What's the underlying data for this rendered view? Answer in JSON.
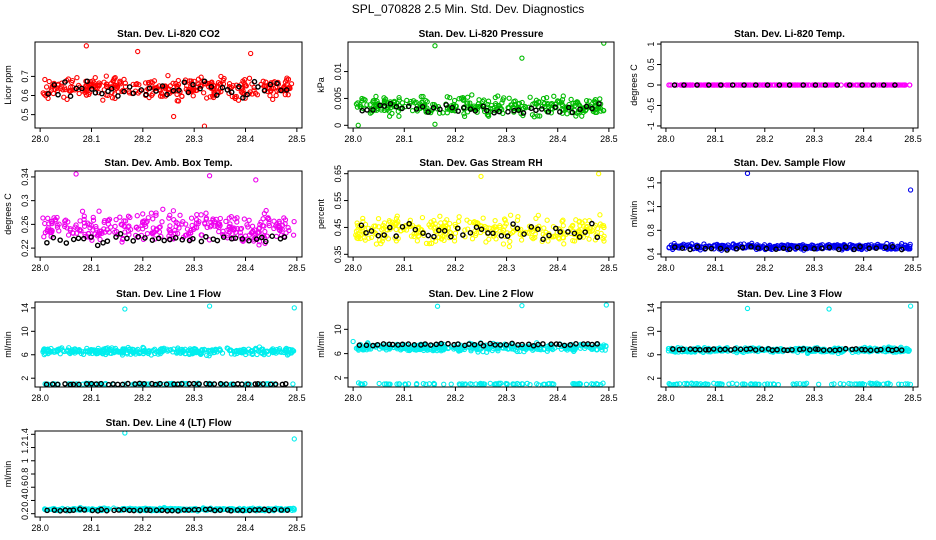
{
  "page_title": "SPL_070828  2.5 Min. Std. Dev. Diagnostics",
  "chart_data": [
    {
      "type": "scatter",
      "id": "co2",
      "title": "Stan. Dev. Li-820 CO2",
      "ylabel": "Licor ppm",
      "color": "#ff0000",
      "xlim": [
        27.99,
        28.51
      ],
      "ylim": [
        0.43,
        0.88
      ],
      "xticks": [
        28.0,
        28.1,
        28.2,
        28.3,
        28.4,
        28.5
      ],
      "yticks": [
        0.5,
        0.6,
        0.7
      ],
      "bands": [
        {
          "y": 0.64,
          "spread": 0.08,
          "n": 320
        }
      ],
      "outliers": [
        {
          "x": 28.09,
          "y": 0.86
        },
        {
          "x": 28.26,
          "y": 0.49
        },
        {
          "x": 28.32,
          "y": 0.44
        },
        {
          "x": 28.19,
          "y": 0.83
        },
        {
          "x": 28.41,
          "y": 0.82
        }
      ],
      "black": {
        "y": 0.63,
        "spread": 0.07,
        "n": 45
      }
    },
    {
      "type": "scatter",
      "id": "pressure",
      "title": "Stan. Dev. Li-820 Pressure",
      "ylabel": "kPa",
      "color": "#00bb00",
      "xlim": [
        27.99,
        28.51
      ],
      "ylim": [
        -0.0005,
        0.0155
      ],
      "xticks": [
        28.0,
        28.1,
        28.2,
        28.3,
        28.4,
        28.5
      ],
      "yticks": [
        0.0,
        0.005,
        0.01
      ],
      "bands": [
        {
          "y": 0.0035,
          "spread": 0.0025,
          "n": 320
        }
      ],
      "outliers": [
        {
          "x": 28.16,
          "y": 0.0148
        },
        {
          "x": 28.33,
          "y": 0.0125
        },
        {
          "x": 28.49,
          "y": 0.0153
        },
        {
          "x": 28.01,
          "y": 0.0
        },
        {
          "x": 28.16,
          "y": 0.0002
        }
      ],
      "black": {
        "y": 0.003,
        "spread": 0.0015,
        "n": 40
      }
    },
    {
      "type": "scatter",
      "id": "temp",
      "title": "Stan. Dev. Li-820 Temp.",
      "ylabel": "degrees C",
      "color": "#ff00ff",
      "xlim": [
        27.99,
        28.51
      ],
      "ylim": [
        -1.05,
        1.05
      ],
      "xticks": [
        28.0,
        28.1,
        28.2,
        28.3,
        28.4,
        28.5
      ],
      "yticks": [
        -1.0,
        -0.5,
        0.0,
        0.5,
        1.0
      ],
      "bands": [
        {
          "y": 0.0,
          "spread": 0.0,
          "n": 260
        }
      ],
      "outliers": [],
      "black": {
        "y": 0.0,
        "spread": 0.0,
        "n": 20
      }
    },
    {
      "type": "scatter",
      "id": "ambbox",
      "title": "Stan. Dev. Amb. Box Temp.",
      "ylabel": "degrees C",
      "color": "#ee00ee",
      "xlim": [
        27.99,
        28.51
      ],
      "ylim": [
        0.205,
        0.35
      ],
      "xticks": [
        28.0,
        28.1,
        28.2,
        28.3,
        28.4,
        28.5
      ],
      "yticks": [
        0.22,
        0.26,
        0.3,
        0.34
      ],
      "bands": [
        {
          "y": 0.255,
          "spread": 0.038,
          "n": 320
        }
      ],
      "outliers": [
        {
          "x": 28.07,
          "y": 0.345
        },
        {
          "x": 28.33,
          "y": 0.342
        },
        {
          "x": 28.42,
          "y": 0.335
        }
      ],
      "black": {
        "y": 0.235,
        "spread": 0.012,
        "n": 40
      }
    },
    {
      "type": "scatter",
      "id": "rh",
      "title": "Stan. Dev. Gas Stream RH",
      "ylabel": "percent",
      "color": "#ffff00",
      "xlim": [
        27.99,
        28.51
      ],
      "ylim": [
        0.34,
        0.66
      ],
      "xticks": [
        28.0,
        28.1,
        28.2,
        28.3,
        28.4,
        28.5
      ],
      "yticks": [
        0.35,
        0.45,
        0.55,
        0.65
      ],
      "bands": [
        {
          "y": 0.44,
          "spread": 0.07,
          "n": 320
        }
      ],
      "outliers": [
        {
          "x": 28.25,
          "y": 0.64
        },
        {
          "x": 28.48,
          "y": 0.65
        }
      ],
      "black": {
        "y": 0.44,
        "spread": 0.05,
        "n": 40
      }
    },
    {
      "type": "scatter",
      "id": "sample",
      "title": "Stan. Dev. Sample Flow",
      "ylabel": "ml/min",
      "color": "#0000ee",
      "xlim": [
        27.99,
        28.51
      ],
      "ylim": [
        0.35,
        1.8
      ],
      "xticks": [
        28.0,
        28.1,
        28.2,
        28.3,
        28.4,
        28.5
      ],
      "yticks": [
        0.4,
        0.8,
        1.2,
        1.6
      ],
      "bands": [
        {
          "y": 0.52,
          "spread": 0.07,
          "n": 340
        }
      ],
      "outliers": [
        {
          "x": 28.165,
          "y": 1.76
        },
        {
          "x": 28.495,
          "y": 1.48
        }
      ],
      "black": {
        "y": 0.5,
        "spread": 0.04,
        "n": 30
      }
    },
    {
      "type": "scatter",
      "id": "line1",
      "title": "Stan. Dev. Line 1 Flow",
      "ylabel": "ml/min",
      "color": "#00eeee",
      "xlim": [
        27.99,
        28.51
      ],
      "ylim": [
        0.5,
        15
      ],
      "xticks": [
        28.0,
        28.1,
        28.2,
        28.3,
        28.4,
        28.5
      ],
      "yticks": [
        2,
        6,
        10,
        14
      ],
      "bands": [
        {
          "y": 6.6,
          "spread": 0.9,
          "n": 360
        },
        {
          "y": 1.0,
          "spread": 0.2,
          "n": 90
        }
      ],
      "outliers": [
        {
          "x": 28.165,
          "y": 13.8
        },
        {
          "x": 28.33,
          "y": 14.3
        },
        {
          "x": 28.495,
          "y": 14.0
        }
      ],
      "black": {
        "y": 1.0,
        "spread": 0.15,
        "n": 45
      }
    },
    {
      "type": "scatter",
      "id": "line2",
      "title": "Stan. Dev. Line 2 Flow",
      "ylabel": "ml/min",
      "color": "#00eeee",
      "xlim": [
        27.99,
        28.51
      ],
      "ylim": [
        0.5,
        14.5
      ],
      "xticks": [
        28.0,
        28.1,
        28.2,
        28.3,
        28.4,
        28.5
      ],
      "yticks": [
        2,
        6,
        10
      ],
      "bands": [
        {
          "y": 7.0,
          "spread": 0.9,
          "n": 360
        },
        {
          "y": 1.0,
          "spread": 0.2,
          "n": 90
        }
      ],
      "outliers": [
        {
          "x": 28.165,
          "y": 13.8
        },
        {
          "x": 28.33,
          "y": 13.9
        },
        {
          "x": 28.495,
          "y": 14.0
        },
        {
          "x": 28.0,
          "y": 8.0
        }
      ],
      "black": {
        "y": 7.5,
        "spread": 0.25,
        "n": 45
      }
    },
    {
      "type": "scatter",
      "id": "line3",
      "title": "Stan. Dev. Line 3 Flow",
      "ylabel": "ml/min",
      "color": "#00eeee",
      "xlim": [
        27.99,
        28.51
      ],
      "ylim": [
        0.5,
        15
      ],
      "xticks": [
        28.0,
        28.1,
        28.2,
        28.3,
        28.4,
        28.5
      ],
      "yticks": [
        2,
        6,
        10,
        14
      ],
      "bands": [
        {
          "y": 6.8,
          "spread": 0.6,
          "n": 360
        },
        {
          "y": 1.0,
          "spread": 0.2,
          "n": 90
        }
      ],
      "outliers": [
        {
          "x": 28.165,
          "y": 13.9
        },
        {
          "x": 28.33,
          "y": 13.8
        },
        {
          "x": 28.495,
          "y": 14.3
        }
      ],
      "black": {
        "y": 6.9,
        "spread": 0.25,
        "n": 45
      }
    },
    {
      "type": "scatter",
      "id": "line4",
      "title": "Stan. Dev. Line 4 (LT) Flow",
      "ylabel": "ml/min",
      "color": "#00eeee",
      "xlim": [
        27.99,
        28.51
      ],
      "ylim": [
        0.15,
        1.45
      ],
      "xticks": [
        28.0,
        28.1,
        28.2,
        28.3,
        28.4,
        28.5
      ],
      "yticks": [
        0.2,
        0.4,
        0.6,
        0.8,
        1.0,
        1.2,
        1.4
      ],
      "bands": [
        {
          "y": 0.265,
          "spread": 0.03,
          "n": 360
        }
      ],
      "outliers": [
        {
          "x": 28.165,
          "y": 1.42
        },
        {
          "x": 28.495,
          "y": 1.33
        }
      ],
      "black": {
        "y": 0.255,
        "spread": 0.02,
        "n": 45
      }
    }
  ]
}
